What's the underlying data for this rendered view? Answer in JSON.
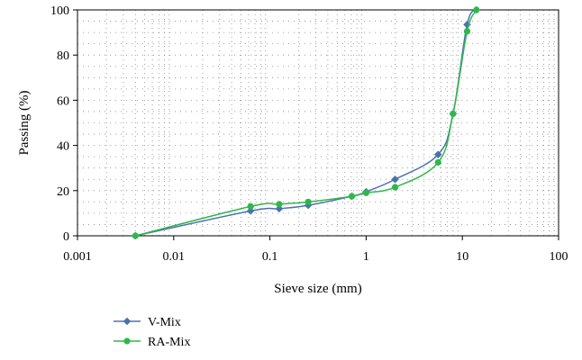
{
  "chart_data": {
    "type": "line",
    "xlabel": "Sieve size (mm)",
    "ylabel": "Passing (%)",
    "x_scale": "log",
    "xlim": [
      0.001,
      100
    ],
    "ylim": [
      0,
      100
    ],
    "x_ticks": [
      "0.001",
      "0.01",
      "0.1",
      "1",
      "10",
      "100"
    ],
    "y_ticks": [
      "0",
      "20",
      "40",
      "60",
      "80",
      "100"
    ],
    "grid": true,
    "legend_position": "bottom-left",
    "series": [
      {
        "name": "V-Mix",
        "color": "#4a72b0",
        "marker": "diamond",
        "x": [
          0.004,
          0.063,
          0.125,
          0.25,
          0.71,
          1.0,
          2.0,
          5.6,
          8.0,
          11.2,
          14.0
        ],
        "y": [
          0,
          11,
          12,
          13.5,
          17.5,
          19.5,
          25,
          36,
          54,
          93.5,
          100
        ]
      },
      {
        "name": "RA-Mix",
        "color": "#2eb84a",
        "marker": "circle",
        "x": [
          0.004,
          0.063,
          0.125,
          0.25,
          0.71,
          1.0,
          2.0,
          5.6,
          8.0,
          11.2,
          14.0
        ],
        "y": [
          0,
          13,
          14,
          15,
          17.5,
          19,
          21.5,
          32.5,
          54,
          90.5,
          100
        ]
      }
    ]
  }
}
